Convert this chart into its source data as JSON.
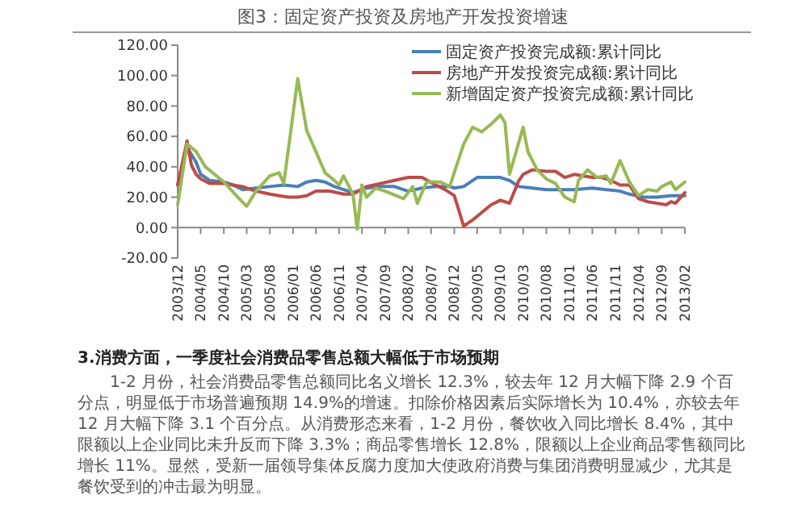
{
  "chart_data": {
    "type": "line",
    "title": "图3：固定资产投资及房地产开发投资增速",
    "xlim": [
      "2003-12",
      "2013-02"
    ],
    "xticks": [
      {
        "value": "2003-12",
        "label": "2003/12"
      },
      {
        "value": "2004-05",
        "label": "2004/05"
      },
      {
        "value": "2004-10",
        "label": "2004/10"
      },
      {
        "value": "2005-03",
        "label": "2005/03"
      },
      {
        "value": "2005-08",
        "label": "2005/08"
      },
      {
        "value": "2006-01",
        "label": "2006/01"
      },
      {
        "value": "2006-06",
        "label": "2006/06"
      },
      {
        "value": "2006-11",
        "label": "2006/11"
      },
      {
        "value": "2007-04",
        "label": "2007/04"
      },
      {
        "value": "2007-09",
        "label": "2007/09"
      },
      {
        "value": "2008-02",
        "label": "2008/02"
      },
      {
        "value": "2008-07",
        "label": "2008/07"
      },
      {
        "value": "2008-12",
        "label": "2008/12"
      },
      {
        "value": "2009-05",
        "label": "2009/05"
      },
      {
        "value": "2009-10",
        "label": "2009/10"
      },
      {
        "value": "2010-03",
        "label": "2010/03"
      },
      {
        "value": "2010-08",
        "label": "2010/08"
      },
      {
        "value": "2011-01",
        "label": "2011/01"
      },
      {
        "value": "2011-06",
        "label": "2011/06"
      },
      {
        "value": "2011-11",
        "label": "2011/11"
      },
      {
        "value": "2012-04",
        "label": "2012/04"
      },
      {
        "value": "2012-09",
        "label": "2012/09"
      },
      {
        "value": "2013-02",
        "label": "2013/02"
      }
    ],
    "ylim": [
      -20,
      120
    ],
    "yticks": [
      {
        "value": -20,
        "label": "-20.00"
      },
      {
        "value": 0,
        "label": "0.00"
      },
      {
        "value": 20,
        "label": "20.00"
      },
      {
        "value": 40,
        "label": "40.00"
      },
      {
        "value": 60,
        "label": "60.00"
      },
      {
        "value": 80,
        "label": "80.00"
      },
      {
        "value": 100,
        "label": "100.00"
      },
      {
        "value": 120,
        "label": "120.00"
      }
    ],
    "legend": "top right",
    "marker": "none",
    "line_style": "solid",
    "series": [
      {
        "name": "固定资产投资完成额:累计同比",
        "color": "#4a7ebb",
        "x": [
          "2003-12",
          "2004-02",
          "2004-03",
          "2004-04",
          "2004-05",
          "2004-07",
          "2004-10",
          "2004-12",
          "2005-02",
          "2005-05",
          "2005-08",
          "2005-11",
          "2006-02",
          "2006-04",
          "2006-06",
          "2006-08",
          "2006-10",
          "2006-12",
          "2007-02",
          "2007-05",
          "2007-08",
          "2007-11",
          "2008-02",
          "2008-05",
          "2008-08",
          "2008-11",
          "2008-12",
          "2009-02",
          "2009-05",
          "2009-08",
          "2009-10",
          "2009-12",
          "2010-02",
          "2010-05",
          "2010-08",
          "2010-11",
          "2011-02",
          "2011-06",
          "2011-09",
          "2011-12",
          "2012-02",
          "2012-05",
          "2012-08",
          "2012-11",
          "2013-02"
        ],
        "values": [
          28,
          53,
          48,
          43,
          35,
          31,
          30,
          28,
          25,
          26,
          27,
          28,
          27,
          30,
          31,
          30,
          27,
          25,
          23,
          26,
          27,
          27,
          24,
          26,
          27,
          27,
          26,
          27,
          33,
          33,
          33,
          31,
          27,
          26,
          25,
          25,
          25,
          26,
          25,
          24,
          22,
          20,
          20,
          21,
          21
        ]
      },
      {
        "name": "房地产开发投资完成额:累计同比",
        "color": "#be4b48",
        "x": [
          "2003-12",
          "2004-02",
          "2004-03",
          "2004-04",
          "2004-05",
          "2004-07",
          "2004-10",
          "2004-12",
          "2005-02",
          "2005-05",
          "2005-08",
          "2005-10",
          "2005-12",
          "2006-02",
          "2006-04",
          "2006-06",
          "2006-09",
          "2006-12",
          "2007-02",
          "2007-05",
          "2007-08",
          "2007-11",
          "2008-02",
          "2008-05",
          "2008-08",
          "2008-10",
          "2008-12",
          "2009-02",
          "2009-04",
          "2009-06",
          "2009-08",
          "2009-10",
          "2009-11",
          "2009-12",
          "2010-02",
          "2010-03",
          "2010-05",
          "2010-08",
          "2010-10",
          "2010-12",
          "2011-02",
          "2011-04",
          "2011-06",
          "2011-08",
          "2011-10",
          "2011-12",
          "2012-02",
          "2012-04",
          "2012-06",
          "2012-08",
          "2012-10",
          "2012-11",
          "2012-12",
          "2013-02"
        ],
        "values": [
          28,
          57,
          41,
          35,
          32,
          29,
          29,
          28,
          27,
          24,
          22,
          21,
          20,
          20,
          21,
          24,
          24,
          22,
          22,
          27,
          29,
          31,
          33,
          33,
          28,
          25,
          21,
          1,
          5,
          10,
          15,
          18,
          17,
          16,
          31,
          35,
          38,
          37,
          37,
          33,
          35,
          34,
          33,
          33,
          31,
          28,
          28,
          19,
          17,
          16,
          15,
          17,
          16,
          23
        ]
      },
      {
        "name": "新增固定资产投资完成额:累计同比",
        "color": "#98b954",
        "x": [
          "2003-12",
          "2004-02",
          "2004-04",
          "2004-06",
          "2004-10",
          "2005-01",
          "2005-03",
          "2005-05",
          "2005-08",
          "2005-10",
          "2005-11",
          "2006-02",
          "2006-04",
          "2006-06",
          "2006-08",
          "2006-10",
          "2006-11",
          "2006-12",
          "2007-02",
          "2007-03",
          "2007-04",
          "2007-05",
          "2007-07",
          "2007-09",
          "2008-01",
          "2008-03",
          "2008-04",
          "2008-06",
          "2008-09",
          "2008-11",
          "2009-02",
          "2009-04",
          "2009-06",
          "2009-08",
          "2009-10",
          "2009-11",
          "2009-12",
          "2010-03",
          "2010-04",
          "2010-06",
          "2010-08",
          "2010-10",
          "2010-12",
          "2011-02",
          "2011-03",
          "2011-05",
          "2011-07",
          "2011-09",
          "2011-10",
          "2011-12",
          "2012-02",
          "2012-04",
          "2012-06",
          "2012-08",
          "2012-09",
          "2012-11",
          "2012-12",
          "2013-02"
        ],
        "values": [
          15,
          55,
          50,
          40,
          30,
          20,
          14,
          24,
          34,
          36,
          29,
          98,
          64,
          50,
          36,
          31,
          28,
          34,
          22,
          -1,
          28,
          20,
          26,
          24,
          19,
          27,
          16,
          30,
          30,
          27,
          55,
          66,
          63,
          68,
          74,
          69,
          35,
          66,
          50,
          38,
          32,
          29,
          20,
          17,
          31,
          38,
          33,
          34,
          29,
          44,
          30,
          21,
          25,
          24,
          27,
          30,
          25,
          30
        ]
      }
    ],
    "annotations": [
      "3.消费方面，一季度社会消费品零售总额大幅低于市场预期",
      "1-2 月份，社会消费品零售总额同比名义增长 12.3%，较去年 12 月大幅下降 2.9 个百分点，明显低于市场普遍预期 14.9%的增速。扣除价格因素后实际增长为 10.4%，亦较去年 12 月大幅下降 3.1 个百分点。从消费形态来看，1-2 月份，餐饮收入同比增长 8.4%，其中限额以上企业同比未升反而下降 3.3%；商品零售增长 12.8%，限额以上企业商品零售额同比增长 11%。显然，受新一届领导集体反腐力度加大使政府消费与集团消费明显减少，尤其是餐饮受到的冲击最为明显。"
    ]
  }
}
